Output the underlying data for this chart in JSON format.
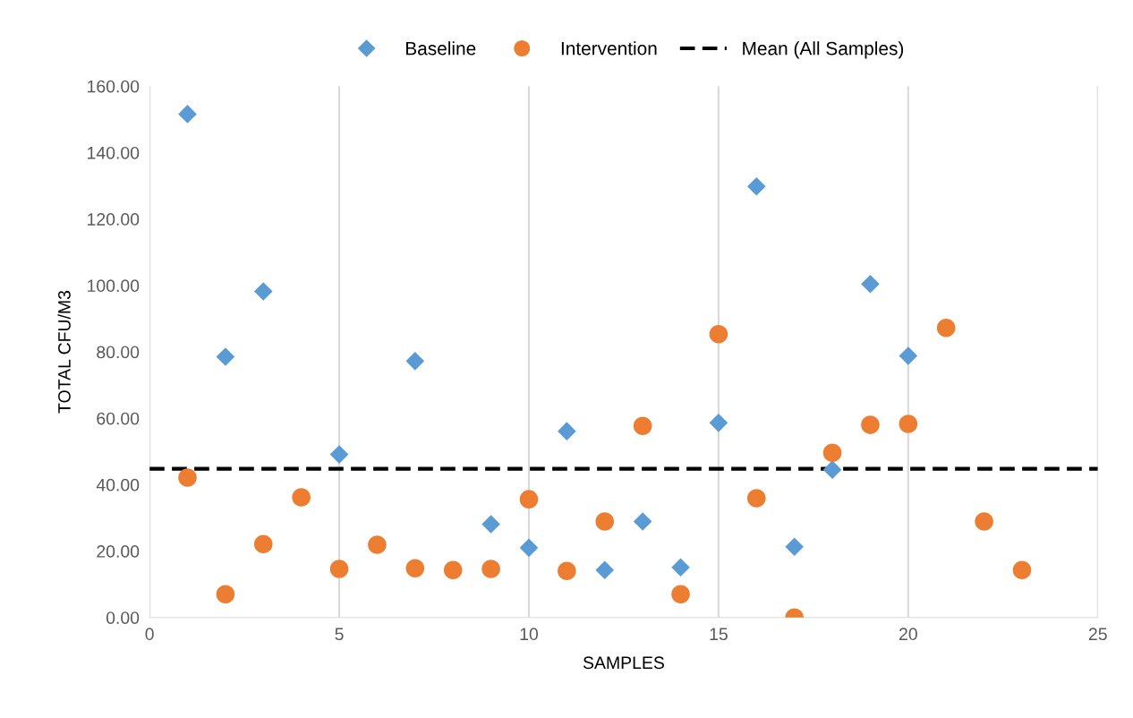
{
  "chart_data": {
    "type": "scatter",
    "xlabel": "SAMPLES",
    "ylabel": "TOTAL CFU/M3",
    "series": [
      {
        "name": "Baseline",
        "color": "#5b9bd5",
        "marker": "diamond",
        "x": [
          1,
          2,
          3,
          4,
          5,
          6,
          7,
          8,
          9,
          10,
          11,
          12,
          13,
          14,
          15,
          16,
          17,
          18,
          19,
          20
        ],
        "values": [
          151.6,
          78.5,
          98.2,
          null,
          49.1,
          null,
          77.2,
          null,
          28.1,
          21.0,
          56.1,
          14.3,
          28.9,
          15.1,
          58.6,
          129.8,
          21.3,
          44.5,
          100.4,
          78.8
        ]
      },
      {
        "name": "Intervention",
        "color": "#ed7d31",
        "marker": "circle",
        "x": [
          1,
          2,
          3,
          4,
          5,
          6,
          7,
          8,
          9,
          10,
          11,
          12,
          13,
          14,
          15,
          16,
          17,
          18,
          19,
          20,
          21,
          22,
          23
        ],
        "values": [
          42.1,
          7.0,
          22.1,
          36.2,
          14.6,
          21.9,
          14.8,
          14.3,
          14.6,
          35.6,
          14.0,
          28.9,
          57.7,
          7.0,
          85.3,
          35.9,
          0.0,
          49.6,
          58.0,
          58.3,
          87.2,
          28.9,
          14.3
        ]
      }
    ],
    "ref_lines": [
      {
        "axis": "y",
        "value": 44.8,
        "label": "Mean (All Samples)",
        "color": "#000000",
        "line_style": "dashed"
      }
    ],
    "xlim": [
      0,
      25
    ],
    "xticks": [
      0,
      5,
      10,
      15,
      20,
      25
    ],
    "ylim": [
      0,
      160
    ],
    "yticks": [
      {
        "value": 0,
        "label": "0.00"
      },
      {
        "value": 20,
        "label": "20.00"
      },
      {
        "value": 40,
        "label": "40.00"
      },
      {
        "value": 60,
        "label": "60.00"
      },
      {
        "value": 80,
        "label": "80.00"
      },
      {
        "value": 100,
        "label": "100.00"
      },
      {
        "value": 120,
        "label": "120.00"
      },
      {
        "value": 140,
        "label": "140.00"
      },
      {
        "value": 160,
        "label": "160.00"
      }
    ],
    "grid": "x",
    "legend": "top"
  }
}
